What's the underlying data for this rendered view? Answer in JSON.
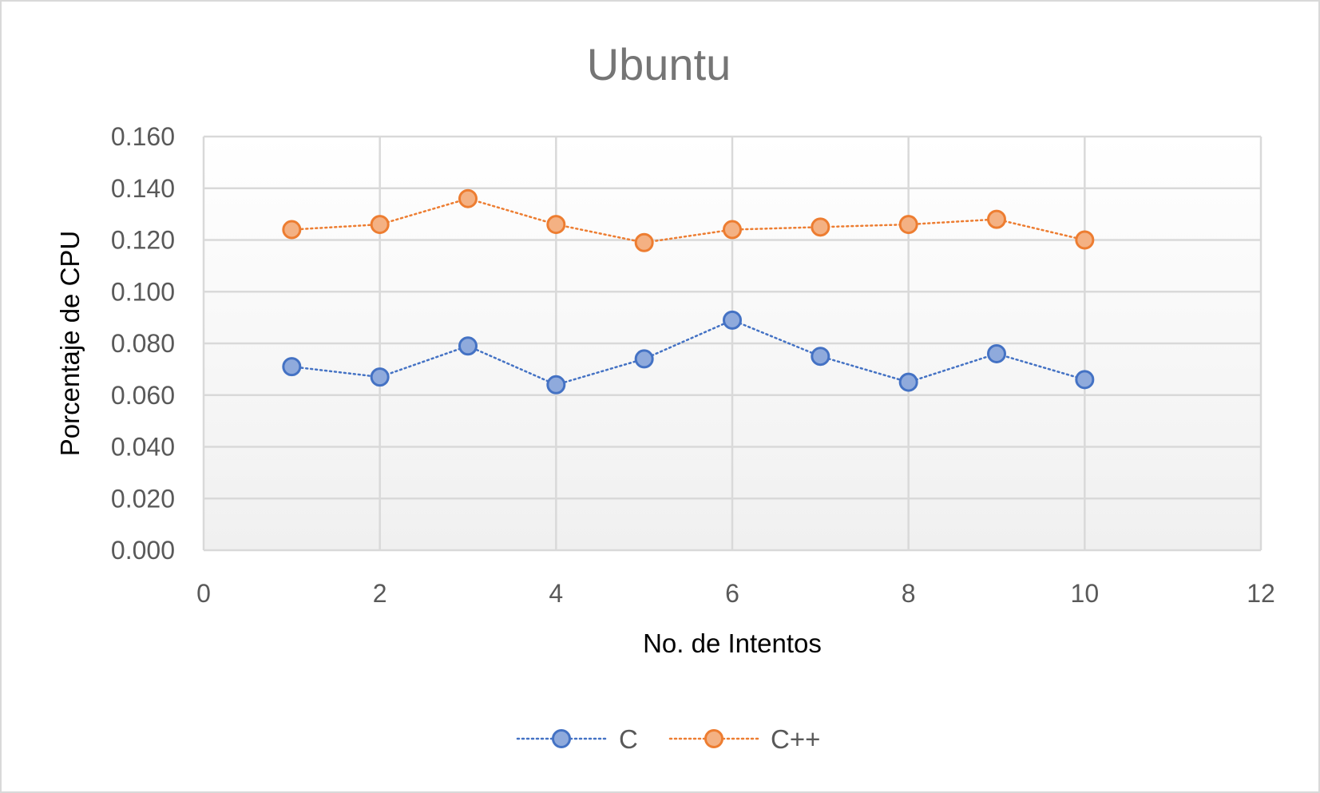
{
  "chart_data": {
    "type": "scatter",
    "title": "Ubuntu",
    "xlabel": "No. de Intentos",
    "ylabel": "Porcentaje de CPU",
    "xlim": [
      0,
      12
    ],
    "ylim": [
      0,
      0.16
    ],
    "xticks": [
      "0",
      "2",
      "4",
      "6",
      "8",
      "10",
      "12"
    ],
    "yticks": [
      "0.000",
      "0.020",
      "0.040",
      "0.060",
      "0.080",
      "0.100",
      "0.120",
      "0.140",
      "0.160"
    ],
    "grid": true,
    "legend_position": "bottom",
    "series": [
      {
        "name": "C",
        "color": "#4472c4",
        "fill": "#8faadc",
        "x": [
          1,
          2,
          3,
          4,
          5,
          6,
          7,
          8,
          9,
          10
        ],
        "y": [
          0.071,
          0.067,
          0.079,
          0.064,
          0.074,
          0.089,
          0.075,
          0.065,
          0.076,
          0.066
        ]
      },
      {
        "name": "C++",
        "color": "#ed7d31",
        "fill": "#f4b183",
        "x": [
          1,
          2,
          3,
          4,
          5,
          6,
          7,
          8,
          9,
          10
        ],
        "y": [
          0.124,
          0.126,
          0.136,
          0.126,
          0.119,
          0.124,
          0.125,
          0.126,
          0.128,
          0.12
        ]
      }
    ]
  }
}
